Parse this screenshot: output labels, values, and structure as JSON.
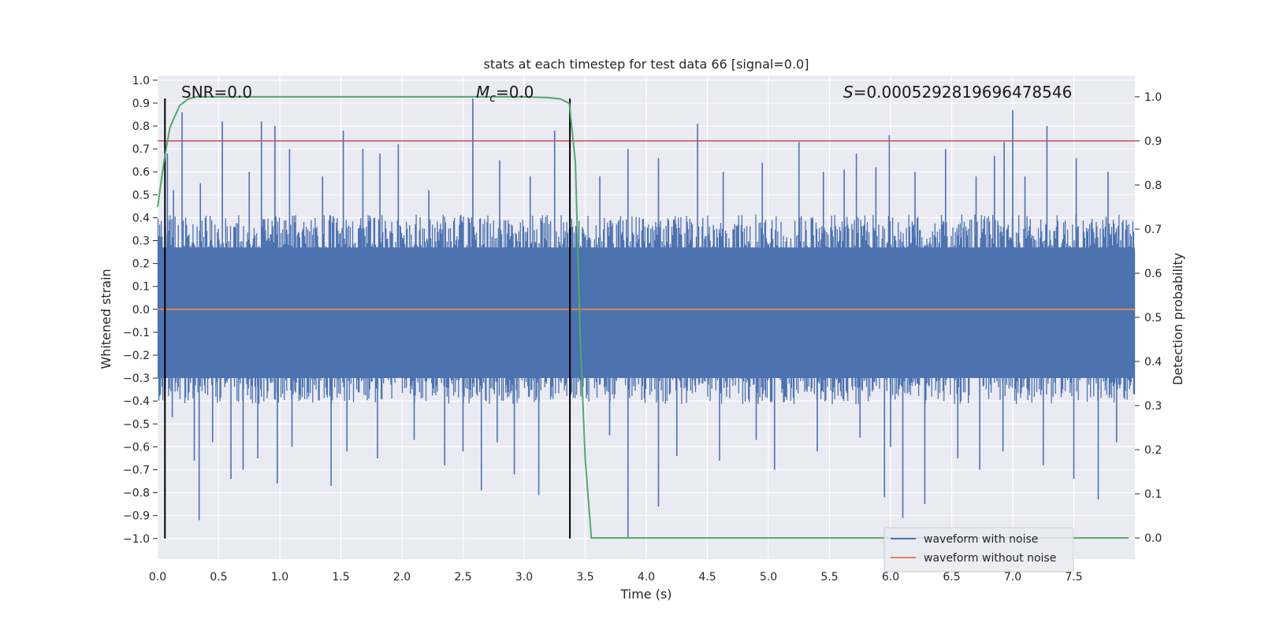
{
  "chart_data": {
    "type": "line",
    "title": "stats at each timestep for test data 66 [signal=0.0]",
    "xlabel": "Time (s)",
    "ylabel": "Whitened strain",
    "ylabel_right": "Detection probability",
    "xlim": [
      0.0,
      8.0
    ],
    "ylim": [
      -1.09,
      1.02
    ],
    "ylim_right": [
      -0.048,
      1.048
    ],
    "xticks": [
      "0.0",
      "0.5",
      "1.0",
      "1.5",
      "2.0",
      "2.5",
      "3.0",
      "3.5",
      "4.0",
      "4.5",
      "5.0",
      "5.5",
      "6.0",
      "6.5",
      "7.0",
      "7.5"
    ],
    "yticks": [
      "1.0",
      "0.9",
      "0.8",
      "0.7",
      "0.6",
      "0.5",
      "0.4",
      "0.3",
      "0.2",
      "0.1",
      "0.0",
      "−0.1",
      "−0.2",
      "−0.3",
      "−0.4",
      "−0.5",
      "−0.6",
      "−0.7",
      "−0.8",
      "−0.9",
      "−1.0"
    ],
    "yticks_right": [
      "1.0",
      "0.9",
      "0.8",
      "0.7",
      "0.6",
      "0.5",
      "0.4",
      "0.3",
      "0.2",
      "0.1",
      "0.0"
    ],
    "grid": true,
    "legend_placement": "lower-right",
    "annotations": {
      "snr": "SNR=0.0",
      "mc_symbol": "M",
      "mc_sub": "c",
      "mc_value": "=0.0",
      "s_symbol": "S",
      "s_value": "=0.0005292819696478546"
    },
    "series": [
      {
        "name": "waveform with noise",
        "color": "#4c72b0",
        "type": "noise",
        "amplitude": 0.36,
        "n": 1200
      },
      {
        "name": "waveform without noise",
        "color": "#dd8452",
        "x": [
          0.0,
          8.0
        ],
        "y": [
          0.0,
          0.0
        ]
      },
      {
        "name": "",
        "color": "#55a868",
        "axis": "right",
        "x": [
          0.0,
          0.05,
          0.1,
          0.18,
          0.25,
          0.32,
          0.5,
          1.0,
          2.0,
          3.0,
          3.2,
          3.3,
          3.37,
          3.42,
          3.46,
          3.5,
          3.55,
          3.7,
          4.0,
          6.0,
          7.5,
          7.95
        ],
        "y": [
          0.75,
          0.85,
          0.93,
          0.98,
          0.995,
          1.0,
          1.0,
          1.0,
          1.0,
          1.0,
          0.998,
          0.995,
          0.985,
          0.85,
          0.45,
          0.18,
          0.0,
          0.0,
          0.0,
          0.0,
          0.0,
          0.0
        ]
      }
    ],
    "threshold": {
      "value": 0.9,
      "axis": "right",
      "color": "#c44e52"
    },
    "markers": {
      "x": [
        0.06,
        3.375
      ],
      "y": [
        -1.0,
        0.92
      ],
      "color": "#000000"
    },
    "spikes": {
      "up_x": [
        0.08,
        0.13,
        0.2,
        0.35,
        0.53,
        0.75,
        0.85,
        0.96,
        1.08,
        1.35,
        1.52,
        1.68,
        1.82,
        1.97,
        2.22,
        2.58,
        2.8,
        3.05,
        3.25,
        3.62,
        3.85,
        4.1,
        4.42,
        4.63,
        4.95,
        5.25,
        5.45,
        5.62,
        5.72,
        5.88,
        5.99,
        6.2,
        6.45,
        6.7,
        6.85,
        6.93,
        7.0,
        7.1,
        7.28,
        7.52,
        7.78
      ],
      "up_y": [
        0.68,
        0.52,
        0.86,
        0.55,
        0.82,
        0.6,
        0.82,
        0.8,
        0.7,
        0.58,
        0.78,
        0.7,
        0.68,
        0.72,
        0.52,
        0.92,
        0.65,
        0.58,
        0.78,
        0.58,
        0.7,
        0.66,
        0.81,
        0.6,
        0.64,
        0.73,
        0.6,
        0.61,
        0.68,
        0.62,
        0.76,
        0.6,
        0.7,
        0.58,
        0.67,
        0.73,
        0.87,
        0.58,
        0.8,
        0.66,
        0.6
      ],
      "down_x": [
        0.12,
        0.3,
        0.34,
        0.45,
        0.6,
        0.7,
        0.82,
        0.98,
        1.1,
        1.42,
        1.55,
        1.8,
        2.1,
        2.35,
        2.5,
        2.65,
        2.78,
        2.92,
        3.12,
        3.7,
        3.85,
        4.1,
        4.25,
        4.6,
        4.9,
        5.05,
        5.4,
        5.75,
        5.95,
        6.0,
        6.1,
        6.28,
        6.55,
        6.73,
        6.92,
        7.25,
        7.5,
        7.7,
        7.85
      ],
      "down_y": [
        -0.47,
        -0.66,
        -0.92,
        -0.58,
        -0.74,
        -0.7,
        -0.65,
        -0.76,
        -0.6,
        -0.77,
        -0.62,
        -0.65,
        -0.57,
        -0.68,
        -0.62,
        -0.79,
        -0.58,
        -0.72,
        -0.81,
        -0.55,
        -1.0,
        -0.86,
        -0.64,
        -0.66,
        -0.57,
        -0.7,
        -0.62,
        -0.56,
        -0.82,
        -0.6,
        -0.91,
        -0.85,
        -0.65,
        -0.7,
        -0.62,
        -0.68,
        -0.74,
        -0.83,
        -0.58
      ]
    }
  }
}
